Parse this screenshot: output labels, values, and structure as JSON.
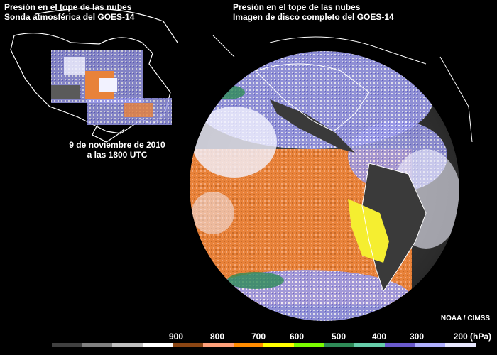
{
  "left_panel": {
    "title_line1": "Presión en el tope de las nubes",
    "title_line2": "Sonda atmosférica del GOES-14"
  },
  "right_panel": {
    "title_line1": "Presión en el tope de las nubes",
    "title_line2": "Imagen de disco completo del GOES-14"
  },
  "date": {
    "line1": "9 de noviembre de 2010",
    "line2": "a las 1800 UTC"
  },
  "credit": "NOAA / CIMSS",
  "colorbar": {
    "labels": [
      "900",
      "800",
      "700",
      "600",
      "500",
      "400",
      "300",
      "200 (hPa)"
    ],
    "colors": [
      "#000000",
      "#404040",
      "#808080",
      "#c0c0c0",
      "#ffffff",
      "#8b4513",
      "#ffa07a",
      "#ff8c00",
      "#ffff00",
      "#7cfc00",
      "#2e8b57",
      "#66cdaa",
      "#6a5acd",
      "#b0b0ff",
      "#e8e8ff"
    ]
  },
  "colors": {
    "background": "#000000",
    "text": "#ffffff",
    "ocean_low_cloud": "#e8823a",
    "high_cloud": "#f2f2ff",
    "mid_cloud": "#9a9ae8",
    "land": "#3a3a3a",
    "peru_fog": "#f5ee30"
  }
}
